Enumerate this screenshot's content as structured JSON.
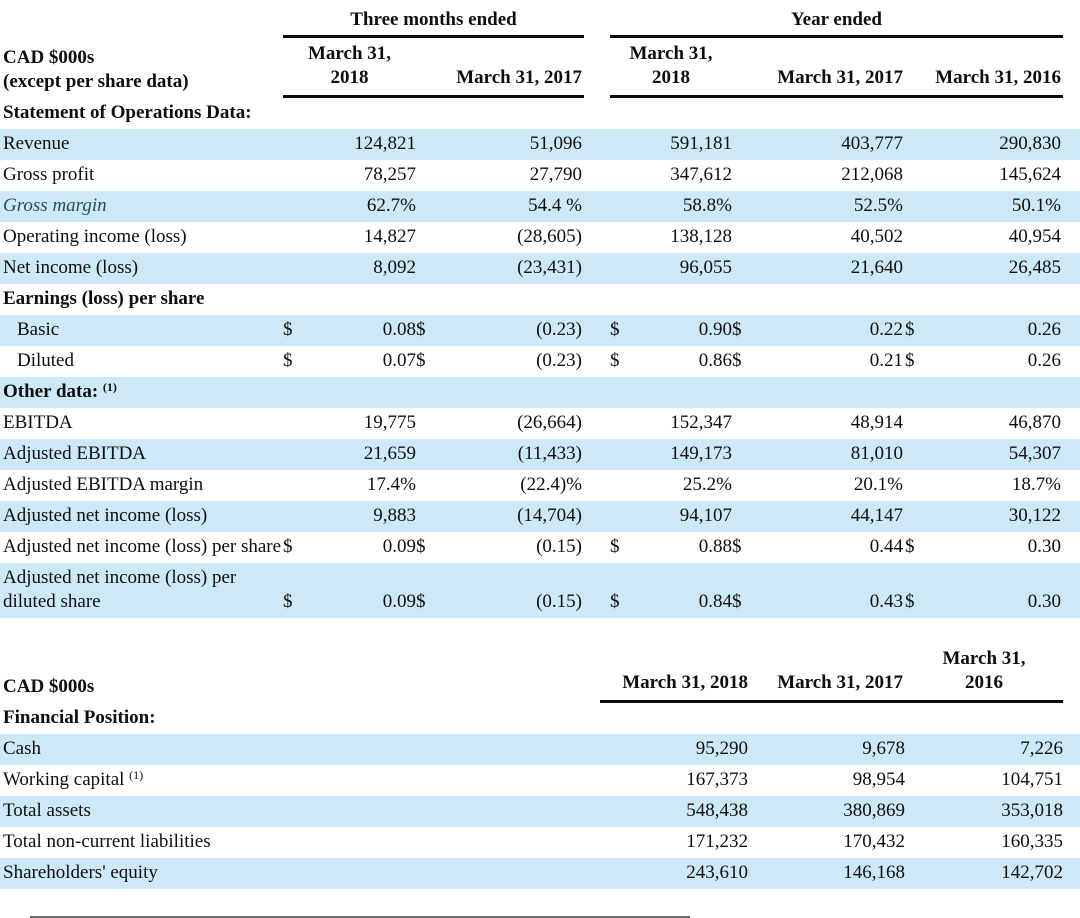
{
  "currency_symbol": "$",
  "styles": {
    "stripe_color": "#cde9f7",
    "header_rule_color": "#0c0c0c",
    "text_color": "#0e0e0e",
    "margin_label_color": "#2b4f52"
  },
  "table1": {
    "corner": {
      "line1": "CAD $000s",
      "line2": "(except per share data)"
    },
    "groups": [
      {
        "title": "Three months ended"
      },
      {
        "title": "Year ended"
      }
    ],
    "col_headers": [
      "March 31,\n2018",
      "March 31, 2017",
      "March 31,\n2018",
      "March 31, 2017",
      "March 31, 2016"
    ],
    "rows": [
      {
        "type": "section",
        "bg": "white",
        "label": "Statement of Operations Data:"
      },
      {
        "type": "data",
        "bg": "blue",
        "label": "Revenue",
        "values": [
          "124,821",
          "51,096",
          "591,181",
          "403,777",
          "290,830"
        ]
      },
      {
        "type": "data",
        "bg": "white",
        "label": "Gross profit",
        "values": [
          "78,257",
          "27,790",
          "347,612",
          "212,068",
          "145,624"
        ]
      },
      {
        "type": "data",
        "bg": "blue",
        "label": "Gross margin",
        "em": true,
        "values": [
          "62.7%",
          "54.4 %",
          "58.8%",
          "52.5%",
          "50.1%"
        ]
      },
      {
        "type": "data",
        "bg": "white",
        "label": "Operating income (loss)",
        "values": [
          "14,827",
          "(28,605)",
          "138,128",
          "40,502",
          "40,954"
        ]
      },
      {
        "type": "data",
        "bg": "blue",
        "label": "Net income (loss)",
        "values": [
          "8,092",
          "(23,431)",
          "96,055",
          "21,640",
          "26,485"
        ]
      },
      {
        "type": "section",
        "bg": "white",
        "label": "Earnings (loss) per share"
      },
      {
        "type": "data",
        "bg": "blue",
        "label": "Basic",
        "indent": true,
        "dollar": true,
        "values": [
          "0.08",
          "(0.23)",
          "0.90",
          "0.22",
          "0.26"
        ]
      },
      {
        "type": "data",
        "bg": "white",
        "label": "Diluted",
        "indent": true,
        "dollar": true,
        "values": [
          "0.07",
          "(0.23)",
          "0.86",
          "0.21",
          "0.26"
        ]
      },
      {
        "type": "section",
        "bg": "blue",
        "label": "Other data:",
        "sup": "(1)"
      },
      {
        "type": "data",
        "bg": "white",
        "label": "EBITDA",
        "values": [
          "19,775",
          "(26,664)",
          "152,347",
          "48,914",
          "46,870"
        ]
      },
      {
        "type": "data",
        "bg": "blue",
        "label": "Adjusted EBITDA",
        "values": [
          "21,659",
          "(11,433)",
          "149,173",
          "81,010",
          "54,307"
        ]
      },
      {
        "type": "data",
        "bg": "white",
        "label": "Adjusted EBITDA margin",
        "values": [
          "17.4%",
          "(22.4)%",
          "25.2%",
          "20.1%",
          "18.7%"
        ]
      },
      {
        "type": "data",
        "bg": "blue",
        "label": "Adjusted net income (loss)",
        "values": [
          "9,883",
          "(14,704)",
          "94,107",
          "44,147",
          "30,122"
        ]
      },
      {
        "type": "data",
        "bg": "white",
        "label": "Adjusted net income (loss) per share",
        "dollar": true,
        "values": [
          "0.09",
          "(0.15)",
          "0.88",
          "0.44",
          "0.30"
        ]
      },
      {
        "type": "data",
        "bg": "blue",
        "label": "Adjusted net income (loss) per diluted share",
        "dollar": true,
        "values": [
          "0.09",
          "(0.15)",
          "0.84",
          "0.43",
          "0.30"
        ]
      }
    ]
  },
  "table2": {
    "corner": "CAD $000s",
    "col_headers": [
      "March 31, 2018",
      "March 31, 2017",
      "March 31,\n2016"
    ],
    "rows": [
      {
        "type": "section",
        "bg": "white",
        "label": "Financial Position:"
      },
      {
        "type": "data",
        "bg": "blue",
        "label": "Cash",
        "values": [
          "95,290",
          "9,678",
          "7,226"
        ]
      },
      {
        "type": "data",
        "bg": "white",
        "label": "Working capital",
        "sup": "(1)",
        "values": [
          "167,373",
          "98,954",
          "104,751"
        ]
      },
      {
        "type": "data",
        "bg": "blue",
        "label": "Total assets",
        "values": [
          "548,438",
          "380,869",
          "353,018"
        ]
      },
      {
        "type": "data",
        "bg": "white",
        "label": "Total non-current liabilities",
        "values": [
          "171,232",
          "170,432",
          "160,335"
        ]
      },
      {
        "type": "data",
        "bg": "blue",
        "label": "Shareholders' equity",
        "values": [
          "243,610",
          "146,168",
          "142,702"
        ]
      }
    ]
  }
}
